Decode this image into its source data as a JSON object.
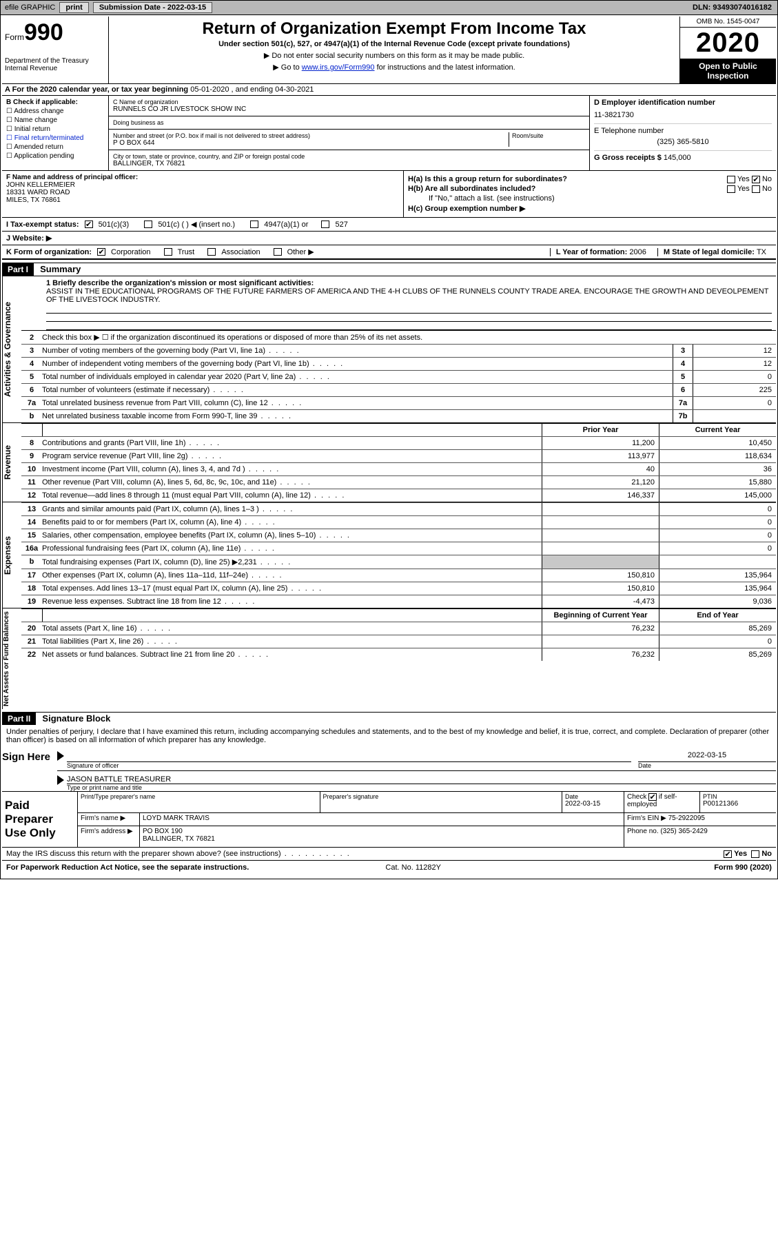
{
  "topbar": {
    "efile_label": "efile GRAPHIC",
    "print_btn": "print",
    "submission_label": "Submission Date - ",
    "submission_date": "2022-03-15",
    "dln_label": "DLN: ",
    "dln": "93493074016182"
  },
  "header": {
    "form_prefix": "Form",
    "form_number": "990",
    "dept1": "Department of the Treasury",
    "dept2": "Internal Revenue",
    "title": "Return of Organization Exempt From Income Tax",
    "subtitle": "Under section 501(c), 527, or 4947(a)(1) of the Internal Revenue Code (except private foundations)",
    "note1": "▶ Do not enter social security numbers on this form as it may be made public.",
    "note2_pre": "▶ Go to ",
    "note2_link": "www.irs.gov/Form990",
    "note2_post": " for instructions and the latest information.",
    "omb": "OMB No. 1545-0047",
    "year": "2020",
    "open": "Open to Public Inspection"
  },
  "period": {
    "prefix": "A For the 2020 calendar year, or tax year beginning ",
    "start": "05-01-2020",
    "mid": " , and ending ",
    "end": "04-30-2021"
  },
  "boxB": {
    "label": "B Check if applicable:",
    "opts": [
      "Address change",
      "Name change",
      "Initial return",
      "Final return/terminated",
      "Amended return",
      "Application pending"
    ]
  },
  "boxC": {
    "name_lbl": "C Name of organization",
    "name": "RUNNELS CO JR LIVESTOCK SHOW INC",
    "dba_lbl": "Doing business as",
    "dba": "",
    "addr_lbl": "Number and street (or P.O. box if mail is not delivered to street address)",
    "room_lbl": "Room/suite",
    "addr": "P O BOX 644",
    "city_lbl": "City or town, state or province, country, and ZIP or foreign postal code",
    "city": "BALLINGER, TX  76821"
  },
  "boxDE": {
    "d_lbl": "D Employer identification number",
    "ein": "11-3821730",
    "e_lbl": "E Telephone number",
    "phone": "(325) 365-5810",
    "g_lbl": "G Gross receipts $ ",
    "gross": "145,000"
  },
  "boxF": {
    "lbl": "F Name and address of principal officer:",
    "name": "JOHN KELLERMEIER",
    "addr1": "18331 WARD ROAD",
    "addr2": "MILES, TX  76861"
  },
  "boxH": {
    "ha_lbl": "H(a)  Is this a group return for subordinates?",
    "hb_lbl": "H(b)  Are all subordinates included?",
    "hb_note": "If \"No,\" attach a list. (see instructions)",
    "hc_lbl": "H(c)  Group exemption number ▶",
    "yes": "Yes",
    "no": "No"
  },
  "lineI": {
    "lbl": "I    Tax-exempt status:",
    "o1": "501(c)(3)",
    "o2": "501(c) (  ) ◀ (insert no.)",
    "o3": "4947(a)(1) or",
    "o4": "527"
  },
  "lineJ": {
    "lbl": "J    Website: ▶",
    "val": ""
  },
  "lineK": {
    "lbl": "K Form of organization:",
    "o1": "Corporation",
    "o2": "Trust",
    "o3": "Association",
    "o4": "Other ▶",
    "l_lbl": "L Year of formation: ",
    "l_val": "2006",
    "m_lbl": "M State of legal domicile: ",
    "m_val": "TX"
  },
  "partI": {
    "bar": "Part I",
    "title": "Summary"
  },
  "mission": {
    "lbl": "1   Briefly describe the organization's mission or most significant activities:",
    "text": "ASSIST IN THE EDUCATIONAL PROGRAMS OF THE FUTURE FARMERS OF AMERICA AND THE 4-H CLUBS OF THE RUNNELS COUNTY TRADE AREA. ENCOURAGE THE GROWTH AND DEVEOLPEMENT OF THE LIVESTOCK INDUSTRY."
  },
  "gov": {
    "q2": "Check this box ▶ ☐ if the organization discontinued its operations or disposed of more than 25% of its net assets.",
    "rows": [
      {
        "n": "3",
        "t": "Number of voting members of the governing body (Part VI, line 1a)",
        "b": "3",
        "v": "12"
      },
      {
        "n": "4",
        "t": "Number of independent voting members of the governing body (Part VI, line 1b)",
        "b": "4",
        "v": "12"
      },
      {
        "n": "5",
        "t": "Total number of individuals employed in calendar year 2020 (Part V, line 2a)",
        "b": "5",
        "v": "0"
      },
      {
        "n": "6",
        "t": "Total number of volunteers (estimate if necessary)",
        "b": "6",
        "v": "225"
      },
      {
        "n": "7a",
        "t": "Total unrelated business revenue from Part VIII, column (C), line 12",
        "b": "7a",
        "v": "0"
      },
      {
        "n": "b",
        "t": "Net unrelated business taxable income from Form 990-T, line 39",
        "b": "7b",
        "v": ""
      }
    ]
  },
  "finhdr": {
    "prior": "Prior Year",
    "current": "Current Year"
  },
  "revenue": [
    {
      "n": "8",
      "t": "Contributions and grants (Part VIII, line 1h)",
      "pv": "11,200",
      "cv": "10,450"
    },
    {
      "n": "9",
      "t": "Program service revenue (Part VIII, line 2g)",
      "pv": "113,977",
      "cv": "118,634"
    },
    {
      "n": "10",
      "t": "Investment income (Part VIII, column (A), lines 3, 4, and 7d )",
      "pv": "40",
      "cv": "36"
    },
    {
      "n": "11",
      "t": "Other revenue (Part VIII, column (A), lines 5, 6d, 8c, 9c, 10c, and 11e)",
      "pv": "21,120",
      "cv": "15,880"
    },
    {
      "n": "12",
      "t": "Total revenue—add lines 8 through 11 (must equal Part VIII, column (A), line 12)",
      "pv": "146,337",
      "cv": "145,000"
    }
  ],
  "expenses": [
    {
      "n": "13",
      "t": "Grants and similar amounts paid (Part IX, column (A), lines 1–3 )",
      "pv": "",
      "cv": "0"
    },
    {
      "n": "14",
      "t": "Benefits paid to or for members (Part IX, column (A), line 4)",
      "pv": "",
      "cv": "0"
    },
    {
      "n": "15",
      "t": "Salaries, other compensation, employee benefits (Part IX, column (A), lines 5–10)",
      "pv": "",
      "cv": "0"
    },
    {
      "n": "16a",
      "t": "Professional fundraising fees (Part IX, column (A), line 11e)",
      "pv": "",
      "cv": "0"
    },
    {
      "n": "b",
      "t": "Total fundraising expenses (Part IX, column (D), line 25) ▶2,231",
      "pv": "",
      "cv": "",
      "shade": true
    },
    {
      "n": "17",
      "t": "Other expenses (Part IX, column (A), lines 11a–11d, 11f–24e)",
      "pv": "150,810",
      "cv": "135,964"
    },
    {
      "n": "18",
      "t": "Total expenses. Add lines 13–17 (must equal Part IX, column (A), line 25)",
      "pv": "150,810",
      "cv": "135,964"
    },
    {
      "n": "19",
      "t": "Revenue less expenses. Subtract line 18 from line 12",
      "pv": "-4,473",
      "cv": "9,036"
    }
  ],
  "nethdr": {
    "prior": "Beginning of Current Year",
    "current": "End of Year"
  },
  "net": [
    {
      "n": "20",
      "t": "Total assets (Part X, line 16)",
      "pv": "76,232",
      "cv": "85,269"
    },
    {
      "n": "21",
      "t": "Total liabilities (Part X, line 26)",
      "pv": "",
      "cv": "0"
    },
    {
      "n": "22",
      "t": "Net assets or fund balances. Subtract line 21 from line 20",
      "pv": "76,232",
      "cv": "85,269"
    }
  ],
  "partII": {
    "bar": "Part II",
    "title": "Signature Block"
  },
  "sigdecl": "Under penalties of perjury, I declare that I have examined this return, including accompanying schedules and statements, and to the best of my knowledge and belief, it is true, correct, and complete. Declaration of preparer (other than officer) is based on all information of which preparer has any knowledge.",
  "sign": {
    "here": "Sign Here",
    "sig_lbl": "Signature of officer",
    "date_lbl": "Date",
    "date": "2022-03-15",
    "name_lbl": "Type or print name and title",
    "name": "JASON BATTLE TREASURER"
  },
  "prep": {
    "lbl": "Paid Preparer Use Only",
    "h1": "Print/Type preparer's name",
    "h2": "Preparer's signature",
    "h3_lbl": "Date",
    "h3": "2022-03-15",
    "h4_lbl": "Check",
    "h4_suf": "if self-employed",
    "h4_chk": true,
    "h5_lbl": "PTIN",
    "h5": "P00121366",
    "firm_lbl": "Firm's name  ▶",
    "firm": "LOYD MARK TRAVIS",
    "ein_lbl": "Firm's EIN ▶ ",
    "ein": "75-2922095",
    "addr_lbl": "Firm's address ▶",
    "addr1": "PO BOX 190",
    "addr2": "BALLINGER, TX  76821",
    "phone_lbl": "Phone no. ",
    "phone": "(325) 365-2429"
  },
  "discuss": {
    "q": "May the IRS discuss this return with the preparer shown above? (see instructions)",
    "yes": "Yes",
    "no": "No"
  },
  "footer": {
    "left": "For Paperwork Reduction Act Notice, see the separate instructions.",
    "mid": "Cat. No. 11282Y",
    "right": "Form 990 (2020)"
  },
  "vlabels": {
    "gov": "Activities & Governance",
    "rev": "Revenue",
    "exp": "Expenses",
    "net": "Net Assets or Fund Balances"
  }
}
